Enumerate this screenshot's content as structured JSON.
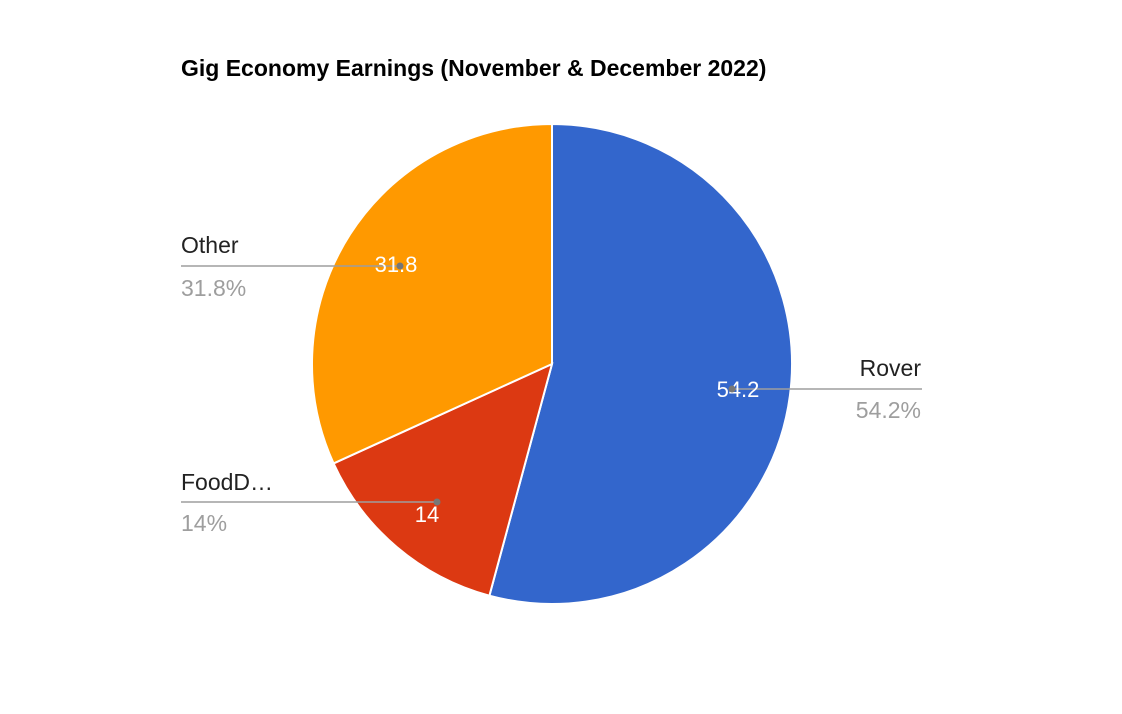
{
  "chart_data": {
    "type": "pie",
    "title": "Gig Economy Earnings (November & December 2022)",
    "slices": [
      {
        "label": "Rover",
        "display_label": "Rover",
        "value": 54.2,
        "value_label": "54.2",
        "percent_label": "54.2%",
        "color": "#3366cc"
      },
      {
        "label": "FoodDash",
        "display_label": "FoodD…",
        "value": 14,
        "value_label": "14",
        "percent_label": "14%",
        "color": "#dc3912"
      },
      {
        "label": "Other",
        "display_label": "Other",
        "value": 31.8,
        "value_label": "31.8",
        "percent_label": "31.8%",
        "color": "#ff9900"
      }
    ],
    "legend": "none",
    "leader_line_color": "#9e9e9e"
  }
}
